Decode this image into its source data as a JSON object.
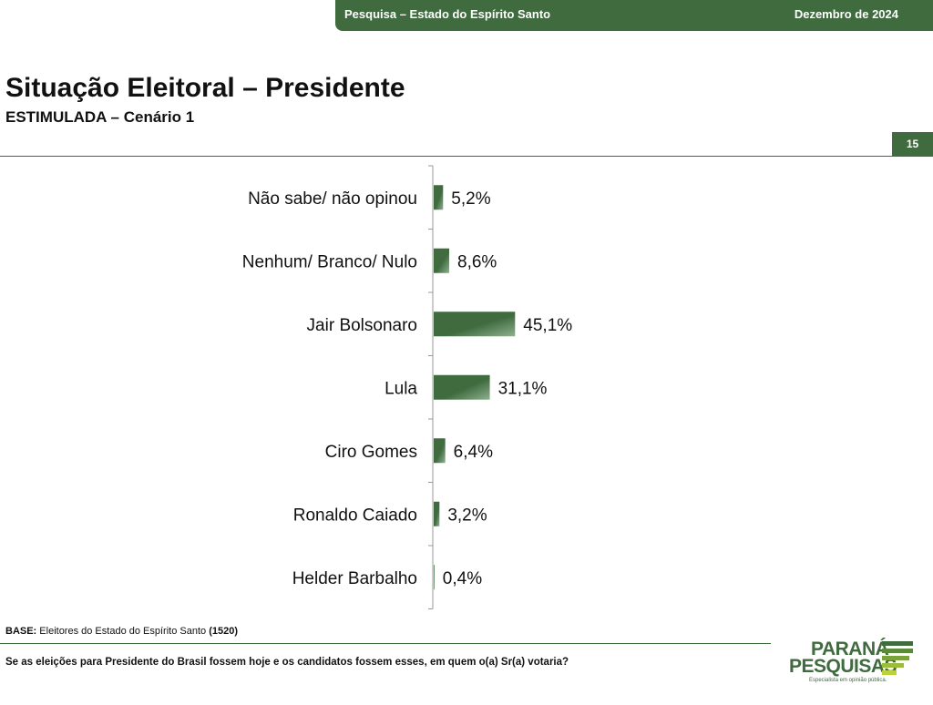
{
  "header": {
    "survey": "Pesquisa – Estado do Espírito Santo",
    "date": "Dezembro de 2024"
  },
  "title": "Situação Eleitoral – Presidente",
  "subtitle": "ESTIMULADA – Cenário 1",
  "page_number": "15",
  "base": {
    "label": "BASE:",
    "text": " Eleitores do Estado do Espírito Santo ",
    "count": "(1520)"
  },
  "question": "Se as eleições para Presidente do Brasil fossem hoje e os candidatos fossem esses, em quem o(a) Sr(a) votaria?",
  "logo": {
    "line1": "PARANÁ",
    "line2": "PESQUISAS",
    "tagline": "Especialista em opinião pública."
  },
  "colors": {
    "accent": "#3f6b3f",
    "bar_light": "#8fb08f"
  },
  "chart_data": {
    "type": "bar",
    "orientation": "horizontal",
    "categories": [
      "Não sabe/ não opinou",
      "Nenhum/ Branco/ Nulo",
      "Jair Bolsonaro",
      "Lula",
      "Ciro Gomes",
      "Ronaldo Caiado",
      "Helder Barbalho"
    ],
    "values": [
      5.2,
      8.6,
      45.1,
      31.1,
      6.4,
      3.2,
      0.4
    ],
    "labels": [
      "5,2%",
      "8,6%",
      "45,1%",
      "31,1%",
      "6,4%",
      "3,2%",
      "0,4%"
    ],
    "title": "",
    "xlabel": "",
    "ylabel": "",
    "xlim": [
      0,
      100
    ],
    "grid": false,
    "legend": "none"
  }
}
